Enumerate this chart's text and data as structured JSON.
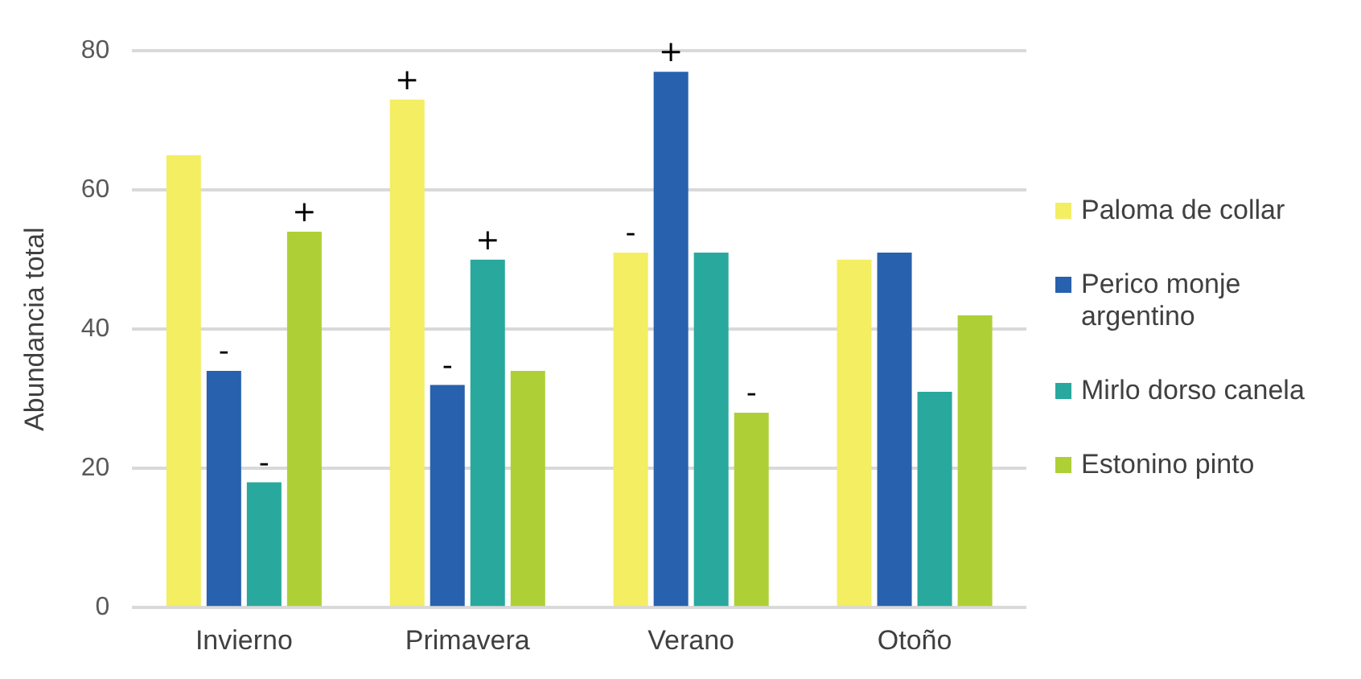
{
  "chart_data": {
    "type": "bar",
    "ylabel": "Abundancia total",
    "categories": [
      "Invierno",
      "Primavera",
      "Verano",
      "Otoño"
    ],
    "series": [
      {
        "name": "Paloma de collar",
        "color": "#f3ee62",
        "values": [
          65,
          73,
          51,
          50
        ],
        "value_labels": [
          null,
          "+",
          "-",
          null
        ]
      },
      {
        "name": "Perico monje argentino",
        "color": "#2861ad",
        "values": [
          34,
          32,
          77,
          51
        ],
        "value_labels": [
          "-",
          "-",
          "+",
          null
        ]
      },
      {
        "name": "Mirlo dorso canela",
        "color": "#29a89d",
        "values": [
          18,
          50,
          51,
          31
        ],
        "value_labels": [
          "-",
          "+",
          null,
          null
        ]
      },
      {
        "name": "Estonino pinto",
        "color": "#aed036",
        "values": [
          54,
          34,
          28,
          42
        ],
        "value_labels": [
          "+",
          null,
          "-",
          null
        ]
      }
    ],
    "ylim": [
      0,
      80
    ],
    "yticks": [
      0,
      20,
      40,
      60,
      80
    ],
    "grid": "y",
    "legend": "right"
  }
}
